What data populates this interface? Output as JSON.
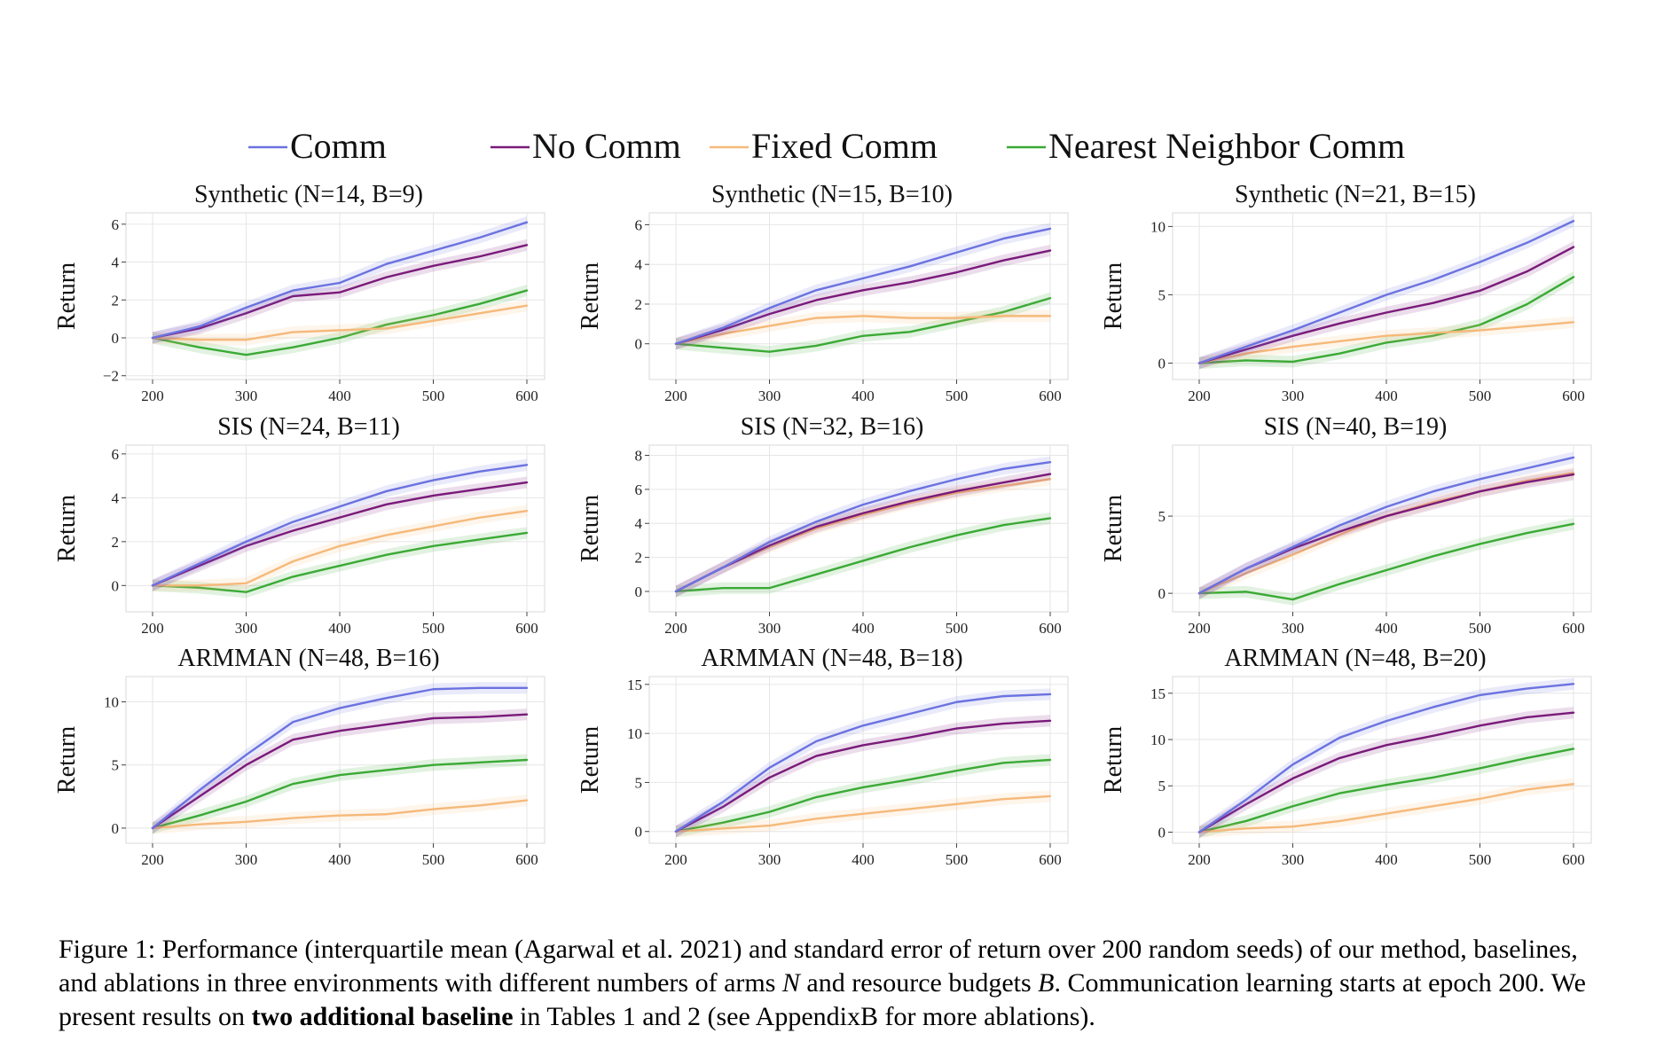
{
  "legend": [
    {
      "name": "Comm",
      "color": "#6b72e0"
    },
    {
      "name": "No Comm",
      "color": "#7a1a7a"
    },
    {
      "name": "Fixed Comm",
      "color": "#f5b97a"
    },
    {
      "name": "Nearest Neighbor Comm",
      "color": "#3aaa35"
    }
  ],
  "caption": {
    "part1": "Figure 1: Performance (interquartile mean (Agarwal et al. 2021) and standard error of return over 200 random seeds) of our method, baselines, and ablations in three environments with different numbers of arms ",
    "N": "N",
    "part2": " and resource budgets ",
    "B": "B",
    "part3": ". Communication learning starts at epoch 200. We present results on ",
    "bold": "two additional baseline",
    "part4": " in Tables 1 and 2 (see AppendixB for more ablations)."
  },
  "chart_data": [
    {
      "type": "line",
      "title": "Synthetic (N=14, B=9)",
      "ylabel": "Return",
      "xlabel": "",
      "xlim": [
        200,
        600
      ],
      "ylim": [
        -2.2,
        6.6
      ],
      "xticks": [
        "200",
        "300",
        "400",
        "500",
        "600"
      ],
      "yticks": [
        "−2",
        "0",
        "2",
        "4",
        "6"
      ],
      "x": [
        200,
        250,
        300,
        350,
        400,
        450,
        500,
        550,
        600
      ],
      "series": [
        {
          "name": "Comm",
          "values": [
            0.0,
            0.6,
            1.6,
            2.5,
            2.9,
            3.9,
            4.6,
            5.3,
            6.1
          ]
        },
        {
          "name": "No Comm",
          "values": [
            0.0,
            0.5,
            1.3,
            2.2,
            2.4,
            3.2,
            3.8,
            4.3,
            4.9
          ]
        },
        {
          "name": "Fixed Comm",
          "values": [
            0.0,
            -0.1,
            -0.1,
            0.3,
            0.4,
            0.5,
            0.9,
            1.3,
            1.7
          ]
        },
        {
          "name": "Nearest Neighbor Comm",
          "values": [
            0.0,
            -0.5,
            -0.9,
            -0.5,
            0.0,
            0.7,
            1.2,
            1.8,
            2.5
          ]
        }
      ]
    },
    {
      "type": "line",
      "title": "Synthetic (N=15, B=10)",
      "ylabel": "Return",
      "xlabel": "",
      "xlim": [
        200,
        600
      ],
      "ylim": [
        -1.8,
        6.6
      ],
      "xticks": [
        "200",
        "300",
        "400",
        "500",
        "600"
      ],
      "yticks": [
        "0",
        "2",
        "4",
        "6"
      ],
      "x": [
        200,
        250,
        300,
        350,
        400,
        450,
        500,
        550,
        600
      ],
      "series": [
        {
          "name": "Comm",
          "values": [
            0.0,
            0.8,
            1.8,
            2.7,
            3.3,
            3.9,
            4.6,
            5.3,
            5.8
          ]
        },
        {
          "name": "No Comm",
          "values": [
            0.0,
            0.7,
            1.5,
            2.2,
            2.7,
            3.1,
            3.6,
            4.2,
            4.7
          ]
        },
        {
          "name": "Fixed Comm",
          "values": [
            0.0,
            0.5,
            0.9,
            1.3,
            1.4,
            1.3,
            1.3,
            1.4,
            1.4
          ]
        },
        {
          "name": "Nearest Neighbor Comm",
          "values": [
            0.0,
            -0.2,
            -0.4,
            -0.1,
            0.4,
            0.6,
            1.1,
            1.6,
            2.3
          ]
        }
      ]
    },
    {
      "type": "line",
      "title": "Synthetic (N=21, B=15)",
      "ylabel": "Return",
      "xlabel": "",
      "xlim": [
        200,
        600
      ],
      "ylim": [
        -1.2,
        11.0
      ],
      "xticks": [
        "200",
        "300",
        "400",
        "500",
        "600"
      ],
      "yticks": [
        "0",
        "5",
        "10"
      ],
      "x": [
        200,
        250,
        300,
        350,
        400,
        450,
        500,
        550,
        600
      ],
      "series": [
        {
          "name": "Comm",
          "values": [
            0.0,
            1.2,
            2.4,
            3.7,
            5.0,
            6.1,
            7.4,
            8.8,
            10.4
          ]
        },
        {
          "name": "No Comm",
          "values": [
            0.0,
            1.0,
            2.0,
            2.9,
            3.7,
            4.4,
            5.3,
            6.7,
            8.5
          ]
        },
        {
          "name": "Fixed Comm",
          "values": [
            0.0,
            0.7,
            1.2,
            1.6,
            2.0,
            2.2,
            2.4,
            2.7,
            3.0
          ]
        },
        {
          "name": "Nearest Neighbor Comm",
          "values": [
            0.0,
            0.2,
            0.1,
            0.7,
            1.5,
            2.0,
            2.8,
            4.3,
            6.3
          ]
        }
      ]
    },
    {
      "type": "line",
      "title": "SIS (N=24, B=11)",
      "ylabel": "Return",
      "xlabel": "",
      "xlim": [
        200,
        600
      ],
      "ylim": [
        -1.2,
        6.4
      ],
      "xticks": [
        "200",
        "300",
        "400",
        "500",
        "600"
      ],
      "yticks": [
        "0",
        "2",
        "4",
        "6"
      ],
      "x": [
        200,
        250,
        300,
        350,
        400,
        450,
        500,
        550,
        600
      ],
      "series": [
        {
          "name": "Comm",
          "values": [
            0.0,
            1.0,
            2.0,
            2.9,
            3.6,
            4.3,
            4.8,
            5.2,
            5.5
          ]
        },
        {
          "name": "No Comm",
          "values": [
            0.0,
            0.9,
            1.8,
            2.5,
            3.1,
            3.7,
            4.1,
            4.4,
            4.7
          ]
        },
        {
          "name": "Fixed Comm",
          "values": [
            0.0,
            0.0,
            0.1,
            1.1,
            1.8,
            2.3,
            2.7,
            3.1,
            3.4
          ]
        },
        {
          "name": "Nearest Neighbor Comm",
          "values": [
            0.0,
            -0.1,
            -0.3,
            0.4,
            0.9,
            1.4,
            1.8,
            2.1,
            2.4
          ]
        }
      ]
    },
    {
      "type": "line",
      "title": "SIS (N=32, B=16)",
      "ylabel": "Return",
      "xlabel": "",
      "xlim": [
        200,
        600
      ],
      "ylim": [
        -1.2,
        8.6
      ],
      "xticks": [
        "200",
        "300",
        "400",
        "500",
        "600"
      ],
      "yticks": [
        "0",
        "2",
        "4",
        "6",
        "8"
      ],
      "x": [
        200,
        250,
        300,
        350,
        400,
        450,
        500,
        550,
        600
      ],
      "series": [
        {
          "name": "Comm",
          "values": [
            0.0,
            1.4,
            2.9,
            4.1,
            5.1,
            5.9,
            6.6,
            7.2,
            7.6
          ]
        },
        {
          "name": "No Comm",
          "values": [
            0.0,
            1.4,
            2.7,
            3.8,
            4.6,
            5.3,
            5.9,
            6.4,
            6.9
          ]
        },
        {
          "name": "Fixed Comm",
          "values": [
            0.0,
            1.4,
            2.6,
            3.7,
            4.5,
            5.2,
            5.8,
            6.2,
            6.6
          ]
        },
        {
          "name": "Nearest Neighbor Comm",
          "values": [
            0.0,
            0.2,
            0.2,
            1.0,
            1.8,
            2.6,
            3.3,
            3.9,
            4.3
          ]
        }
      ]
    },
    {
      "type": "line",
      "title": "SIS (N=40, B=19)",
      "ylabel": "Return",
      "xlabel": "",
      "xlim": [
        200,
        600
      ],
      "ylim": [
        -1.2,
        9.6
      ],
      "xticks": [
        "200",
        "300",
        "400",
        "500",
        "600"
      ],
      "yticks": [
        "0",
        "5"
      ],
      "x": [
        200,
        250,
        300,
        350,
        400,
        450,
        500,
        550,
        600
      ],
      "series": [
        {
          "name": "Comm",
          "values": [
            0.0,
            1.6,
            3.0,
            4.4,
            5.6,
            6.6,
            7.4,
            8.1,
            8.8
          ]
        },
        {
          "name": "No Comm",
          "values": [
            0.0,
            1.6,
            2.9,
            4.0,
            5.0,
            5.8,
            6.6,
            7.2,
            7.7
          ]
        },
        {
          "name": "Fixed Comm",
          "values": [
            0.0,
            1.3,
            2.5,
            3.8,
            5.0,
            5.9,
            6.6,
            7.3,
            7.8
          ]
        },
        {
          "name": "Nearest Neighbor Comm",
          "values": [
            0.0,
            0.1,
            -0.4,
            0.6,
            1.5,
            2.4,
            3.2,
            3.9,
            4.5
          ]
        }
      ]
    },
    {
      "type": "line",
      "title": "ARMMAN (N=48, B=16)",
      "ylabel": "Return",
      "xlabel": "",
      "xlim": [
        200,
        600
      ],
      "ylim": [
        -1.2,
        12.0
      ],
      "xticks": [
        "200",
        "300",
        "400",
        "500",
        "600"
      ],
      "yticks": [
        "0",
        "5",
        "10"
      ],
      "x": [
        200,
        250,
        300,
        350,
        400,
        450,
        500,
        550,
        600
      ],
      "series": [
        {
          "name": "Comm",
          "values": [
            0.0,
            3.0,
            5.8,
            8.4,
            9.5,
            10.3,
            11.0,
            11.1,
            11.1
          ]
        },
        {
          "name": "No Comm",
          "values": [
            0.0,
            2.5,
            5.0,
            7.0,
            7.7,
            8.2,
            8.7,
            8.8,
            9.0
          ]
        },
        {
          "name": "Fixed Comm",
          "values": [
            0.0,
            0.3,
            0.5,
            0.8,
            1.0,
            1.1,
            1.5,
            1.8,
            2.2
          ]
        },
        {
          "name": "Nearest Neighbor Comm",
          "values": [
            0.0,
            1.0,
            2.1,
            3.5,
            4.2,
            4.6,
            5.0,
            5.2,
            5.4
          ]
        }
      ]
    },
    {
      "type": "line",
      "title": "ARMMAN (N=48, B=18)",
      "ylabel": "Return",
      "xlabel": "",
      "xlim": [
        200,
        600
      ],
      "ylim": [
        -1.2,
        15.8
      ],
      "xticks": [
        "200",
        "300",
        "400",
        "500",
        "600"
      ],
      "yticks": [
        "0",
        "5",
        "10",
        "15"
      ],
      "x": [
        200,
        250,
        300,
        350,
        400,
        450,
        500,
        550,
        600
      ],
      "series": [
        {
          "name": "Comm",
          "values": [
            0.0,
            3.0,
            6.5,
            9.2,
            10.8,
            12.0,
            13.2,
            13.8,
            14.0
          ]
        },
        {
          "name": "No Comm",
          "values": [
            0.0,
            2.5,
            5.5,
            7.7,
            8.8,
            9.6,
            10.5,
            11.0,
            11.3
          ]
        },
        {
          "name": "Fixed Comm",
          "values": [
            0.0,
            0.3,
            0.6,
            1.3,
            1.8,
            2.3,
            2.8,
            3.3,
            3.6
          ]
        },
        {
          "name": "Nearest Neighbor Comm",
          "values": [
            0.0,
            0.9,
            2.0,
            3.5,
            4.5,
            5.3,
            6.2,
            7.0,
            7.3
          ]
        }
      ]
    },
    {
      "type": "line",
      "title": "ARMMAN (N=48, B=20)",
      "ylabel": "Return",
      "xlabel": "",
      "xlim": [
        200,
        600
      ],
      "ylim": [
        -1.2,
        16.8
      ],
      "xticks": [
        "200",
        "300",
        "400",
        "500",
        "600"
      ],
      "yticks": [
        "0",
        "5",
        "10",
        "15"
      ],
      "x": [
        200,
        250,
        300,
        350,
        400,
        450,
        500,
        550,
        600
      ],
      "series": [
        {
          "name": "Comm",
          "values": [
            0.0,
            3.5,
            7.3,
            10.2,
            12.0,
            13.5,
            14.8,
            15.5,
            16.0
          ]
        },
        {
          "name": "No Comm",
          "values": [
            0.0,
            3.0,
            5.8,
            8.0,
            9.4,
            10.4,
            11.5,
            12.4,
            12.9
          ]
        },
        {
          "name": "Fixed Comm",
          "values": [
            0.0,
            0.4,
            0.6,
            1.2,
            2.0,
            2.8,
            3.6,
            4.6,
            5.2
          ]
        },
        {
          "name": "Nearest Neighbor Comm",
          "values": [
            0.0,
            1.2,
            2.8,
            4.2,
            5.1,
            5.9,
            6.9,
            8.0,
            9.0
          ]
        }
      ]
    }
  ]
}
